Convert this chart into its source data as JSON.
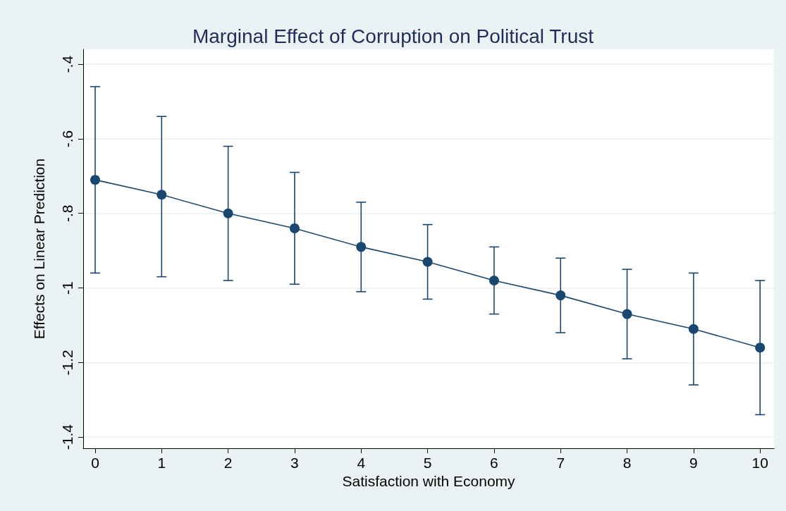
{
  "chart_data": {
    "type": "line",
    "title": "Marginal Effect of Corruption on Political Trust",
    "xlabel": "Satisfaction with Economy",
    "ylabel": "Effects on Linear Prediction",
    "x": [
      0,
      1,
      2,
      3,
      4,
      5,
      6,
      7,
      8,
      9,
      10
    ],
    "series": [
      {
        "color": "#1a476f",
        "values": [
          -0.71,
          -0.75,
          -0.8,
          -0.84,
          -0.89,
          -0.93,
          -0.98,
          -1.02,
          -1.07,
          -1.11,
          -1.16
        ],
        "errors": [
          [
            -0.96,
            -0.46
          ],
          [
            -0.97,
            -0.54
          ],
          [
            -0.98,
            -0.62
          ],
          [
            -0.99,
            -0.69
          ],
          [
            -1.01,
            -0.77
          ],
          [
            -1.03,
            -0.83
          ],
          [
            -1.07,
            -0.89
          ],
          [
            -1.12,
            -0.92
          ],
          [
            -1.19,
            -0.95
          ],
          [
            -1.26,
            -0.96
          ],
          [
            -1.34,
            -0.98
          ]
        ]
      }
    ],
    "xlim": [
      -0.18,
      10.21
    ],
    "xticks": [
      0,
      1,
      2,
      3,
      4,
      5,
      6,
      7,
      8,
      9,
      10
    ],
    "ylim": [
      -1.43,
      -0.36
    ],
    "yticks": [
      {
        "value": -1.4,
        "label": "-1.4"
      },
      {
        "value": -1.2,
        "label": "-1.2"
      },
      {
        "value": -1,
        "label": "-1"
      },
      {
        "value": -0.8,
        "label": "-.8"
      },
      {
        "value": -0.6,
        "label": "-.6"
      },
      {
        "value": -0.4,
        "label": "-.4"
      }
    ],
    "grid": "y",
    "marker": "circle",
    "line_style": "solid"
  }
}
